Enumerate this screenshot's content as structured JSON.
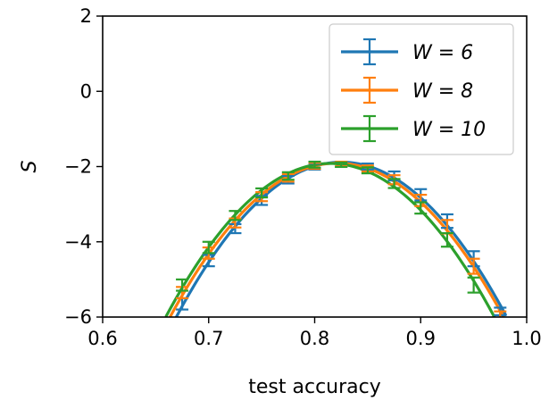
{
  "chart_data": {
    "type": "line",
    "title": "",
    "xlabel": "test accuracy",
    "ylabel": "S",
    "xlim": [
      0.6,
      1.0
    ],
    "ylim": [
      -6,
      2
    ],
    "xticks": [
      "0.6",
      "0.7",
      "0.8",
      "0.9",
      "1.0"
    ],
    "yticks": [
      "2",
      "0",
      "−2",
      "−4",
      "−6"
    ],
    "grid": false,
    "legend_position": "top-right",
    "series": [
      {
        "name": "W = 6",
        "color": "#1f77b4",
        "x": [
          0.675,
          0.7,
          0.725,
          0.75,
          0.775,
          0.8,
          0.825,
          0.85,
          0.875,
          0.9,
          0.925,
          0.95,
          0.975
        ],
        "y": [
          -5.65,
          -4.5,
          -3.65,
          -2.9,
          -2.35,
          -2.0,
          -1.95,
          -2.0,
          -2.25,
          -2.75,
          -3.45,
          -4.45,
          -5.85
        ],
        "err": [
          0.15,
          0.15,
          0.12,
          0.12,
          0.1,
          0.08,
          0.06,
          0.08,
          0.12,
          0.15,
          0.18,
          0.2,
          0.1
        ]
      },
      {
        "name": "W = 8",
        "color": "#ff7f0e",
        "x": [
          0.675,
          0.7,
          0.725,
          0.75,
          0.775,
          0.8,
          0.825,
          0.85,
          0.875,
          0.9,
          0.925,
          0.95,
          0.975
        ],
        "y": [
          -5.35,
          -4.3,
          -3.5,
          -2.8,
          -2.3,
          -1.98,
          -1.93,
          -2.05,
          -2.35,
          -2.9,
          -3.6,
          -4.65,
          -5.95
        ],
        "err": [
          0.15,
          0.15,
          0.12,
          0.12,
          0.1,
          0.08,
          0.06,
          0.08,
          0.12,
          0.15,
          0.18,
          0.2,
          0.1
        ]
      },
      {
        "name": "W = 10",
        "color": "#2ca02c",
        "x": [
          0.675,
          0.7,
          0.725,
          0.75,
          0.775,
          0.8,
          0.825,
          0.85,
          0.875,
          0.9,
          0.925,
          0.95
        ],
        "y": [
          -5.15,
          -4.15,
          -3.3,
          -2.7,
          -2.25,
          -1.95,
          -1.95,
          -2.1,
          -2.45,
          -3.1,
          -3.95,
          -5.15
        ],
        "err": [
          0.15,
          0.15,
          0.12,
          0.12,
          0.1,
          0.08,
          0.06,
          0.08,
          0.12,
          0.15,
          0.18,
          0.2
        ]
      }
    ],
    "fits": [
      {
        "series": "W = 6",
        "x_start": 0.66,
        "x_end": 0.98,
        "x_peak": 0.828,
        "y_peak": -1.95
      },
      {
        "series": "W = 8",
        "x_start": 0.66,
        "x_end": 0.98,
        "x_peak": 0.826,
        "y_peak": -1.95
      },
      {
        "series": "W = 10",
        "x_start": 0.66,
        "x_end": 0.98,
        "x_peak": 0.822,
        "y_peak": -1.95
      }
    ]
  }
}
